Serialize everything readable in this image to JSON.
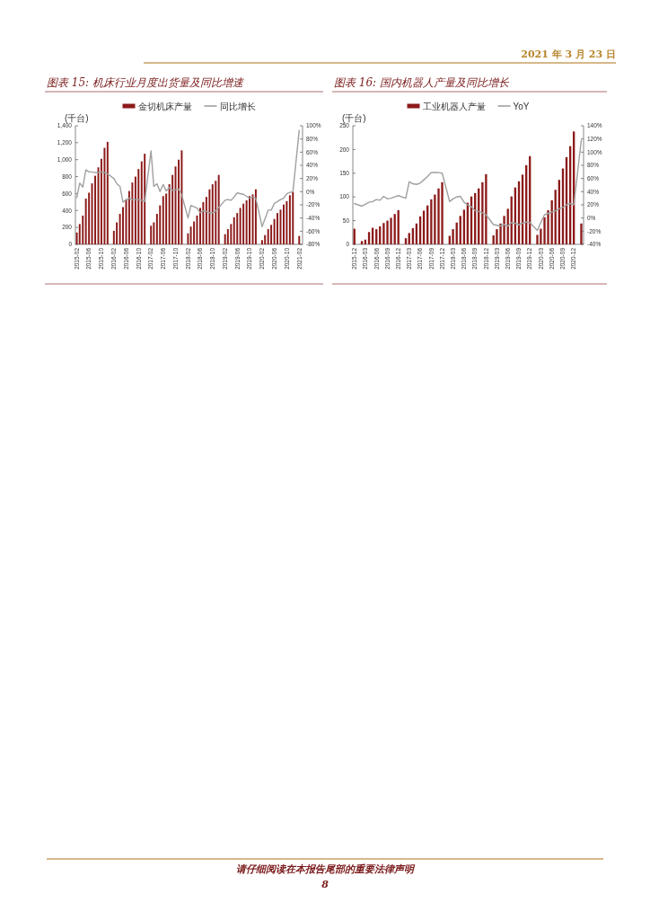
{
  "chart_data": [
    {
      "type": "bar",
      "title": "图表 15: 机床行业月度出货量及同比增速",
      "ylabel": "(千台)",
      "legend": "top",
      "x": [
        "2015-02",
        "2015-03",
        "2015-04",
        "2015-05",
        "2015-06",
        "2015-07",
        "2015-08",
        "2015-09",
        "2015-10",
        "2015-11",
        "2015-12",
        "2016-02",
        "2016-03",
        "2016-04",
        "2016-05",
        "2016-06",
        "2016-07",
        "2016-08",
        "2016-09",
        "2016-10",
        "2016-11",
        "2016-12",
        "2017-02",
        "2017-03",
        "2017-04",
        "2017-05",
        "2017-06",
        "2017-07",
        "2017-08",
        "2017-09",
        "2017-10",
        "2017-11",
        "2017-12",
        "2018-02",
        "2018-03",
        "2018-04",
        "2018-05",
        "2018-06",
        "2018-07",
        "2018-08",
        "2018-09",
        "2018-10",
        "2018-11",
        "2018-12",
        "2019-02",
        "2019-03",
        "2019-04",
        "2019-05",
        "2019-06",
        "2019-07",
        "2019-08",
        "2019-09",
        "2019-10",
        "2019-11",
        "2019-12",
        "2020-02",
        "2020-03",
        "2020-04",
        "2020-05",
        "2020-06",
        "2020-07",
        "2020-08",
        "2020-09",
        "2020-10",
        "2020-11",
        "2020-12",
        "2021-02"
      ],
      "xlim": [
        "2015-01-18",
        "2021-03-06"
      ],
      "xticks": [
        "2015-02",
        "2015-06",
        "2015-10",
        "2016-02",
        "2016-06",
        "2016-10",
        "2017-02",
        "2017-06",
        "2017-10",
        "2018-02",
        "2018-06",
        "2018-10",
        "2019-02",
        "2019-06",
        "2019-10",
        "2020-02",
        "2020-06",
        "2020-10",
        "2021-02"
      ],
      "ylim": [
        0,
        1400
      ],
      "yticks": [
        0,
        200,
        400,
        600,
        800,
        {
          "value": 1000,
          "label": "1,000"
        },
        {
          "value": 1200,
          "label": "1,200"
        },
        {
          "value": 1400,
          "label": "1,400"
        }
      ],
      "y2lim": [
        -80,
        100
      ],
      "y2ticks": [
        {
          "value": -80,
          "label": "-80%"
        },
        {
          "value": -60,
          "label": "-60%"
        },
        {
          "value": -40,
          "label": "-40%"
        },
        {
          "value": -20,
          "label": "-20%"
        },
        {
          "value": 0,
          "label": "0%"
        },
        {
          "value": 20,
          "label": "20%"
        },
        {
          "value": 40,
          "label": "40%"
        },
        {
          "value": 60,
          "label": "60%"
        },
        {
          "value": 80,
          "label": "80%"
        },
        {
          "value": 100,
          "label": "100%"
        }
      ],
      "series": [
        {
          "name": "金切机床产量",
          "color": "#8c1a1a",
          "values": [
            140,
            240,
            340,
            540,
            610,
            720,
            810,
            910,
            1010,
            1140,
            1210,
            160,
            260,
            360,
            440,
            530,
            630,
            730,
            800,
            890,
            980,
            1070,
            220,
            260,
            360,
            460,
            570,
            600,
            710,
            820,
            920,
            1000,
            1110,
            130,
            210,
            270,
            340,
            430,
            500,
            560,
            650,
            710,
            750,
            820,
            120,
            180,
            240,
            320,
            370,
            430,
            480,
            520,
            570,
            590,
            650,
            50,
            110,
            180,
            230,
            300,
            370,
            410,
            470,
            510,
            580,
            620,
            100
          ]
        },
        {
          "name": "同比增长",
          "type": "line",
          "axis": "y2",
          "color": "#a0a0a0",
          "values": [
            -9,
            13,
            7,
            33,
            30,
            30,
            29,
            29,
            30,
            29,
            27,
            20,
            12,
            8,
            -16,
            -12,
            -10,
            -12,
            -12,
            -12,
            -13,
            -15,
            62,
            8,
            12,
            0,
            11,
            1,
            6,
            2,
            3,
            4,
            -5,
            -40,
            -21,
            -23,
            -25,
            -32,
            -29,
            -30,
            -32,
            -32,
            -29,
            -24,
            -13,
            -12,
            -13,
            -8,
            -2,
            -3,
            -4,
            -7,
            -10,
            -8,
            -10,
            -53,
            -41,
            -28,
            -28,
            -18,
            -15,
            -12,
            -10,
            -3,
            -1,
            0,
            93
          ]
        }
      ],
      "annotations": [
        "2021 年 3 月 23 日",
        "请仔细阅读在本报告尾部的重要法律声明",
        "8"
      ]
    },
    {
      "type": "bar",
      "title": "图表 16: 国内机器人产量及同比增长",
      "ylabel": "(千台)",
      "legend": "top",
      "x": [
        "2015-12",
        "2016-02",
        "2016-03",
        "2016-04",
        "2016-05",
        "2016-06",
        "2016-07",
        "2016-08",
        "2016-09",
        "2016-10",
        "2016-11",
        "2016-12",
        "2017-02",
        "2017-03",
        "2017-04",
        "2017-05",
        "2017-06",
        "2017-07",
        "2017-08",
        "2017-09",
        "2017-10",
        "2017-11",
        "2017-12",
        "2018-02",
        "2018-03",
        "2018-04",
        "2018-05",
        "2018-06",
        "2018-07",
        "2018-08",
        "2018-09",
        "2018-10",
        "2018-11",
        "2018-12",
        "2019-02",
        "2019-03",
        "2019-04",
        "2019-05",
        "2019-06",
        "2019-07",
        "2019-08",
        "2019-09",
        "2019-10",
        "2019-11",
        "2019-12",
        "2020-02",
        "2020-03",
        "2020-04",
        "2020-05",
        "2020-06",
        "2020-07",
        "2020-08",
        "2020-09",
        "2020-10",
        "2020-11",
        "2020-12",
        "2021-02"
      ],
      "xlim": [
        "2015-11-18",
        "2021-02-20"
      ],
      "xticks": [
        "2015-12",
        "2016-03",
        "2016-06",
        "2016-09",
        "2016-12",
        "2017-03",
        "2017-06",
        "2017-09",
        "2017-12",
        "2018-03",
        "2018-06",
        "2018-09",
        "2018-12",
        "2019-03",
        "2019-06",
        "2019-09",
        "2019-12",
        "2020-03",
        "2020-06",
        "2020-09",
        "2020-12"
      ],
      "ylim": [
        0,
        250
      ],
      "yticks": [
        0,
        50,
        100,
        150,
        200,
        250
      ],
      "y2lim": [
        -40,
        140
      ],
      "y2ticks": [
        {
          "value": -40,
          "label": "-40%"
        },
        {
          "value": -20,
          "label": "-20%"
        },
        {
          "value": 0,
          "label": "0%"
        },
        {
          "value": 20,
          "label": "20%"
        },
        {
          "value": 40,
          "label": "40%"
        },
        {
          "value": 60,
          "label": "60%"
        },
        {
          "value": 80,
          "label": "80%"
        },
        {
          "value": 100,
          "label": "100%"
        },
        {
          "value": 120,
          "label": "120%"
        },
        {
          "value": 140,
          "label": "140%"
        }
      ],
      "series": [
        {
          "name": "工业机器人产量",
          "color": "#8c1a1a",
          "values": [
            33,
            7,
            10,
            26,
            35,
            32,
            38,
            45,
            50,
            56,
            64,
            72,
            13,
            24,
            34,
            44,
            59,
            71,
            82,
            95,
            105,
            118,
            131,
            18,
            32,
            46,
            60,
            73,
            88,
            101,
            108,
            118,
            131,
            148,
            19,
            32,
            44,
            60,
            75,
            101,
            120,
            133,
            147,
            167,
            186,
            20,
            33,
            57,
            72,
            93,
            115,
            136,
            160,
            184,
            207,
            238,
            44
          ]
        },
        {
          "name": "YoY",
          "type": "line",
          "axis": "y2",
          "color": "#a0a0a0",
          "values": [
            22,
            18,
            21,
            24,
            25,
            28,
            27,
            33,
            29,
            30,
            32,
            34,
            30,
            55,
            52,
            51,
            53,
            58,
            63,
            69,
            69,
            69,
            68,
            25,
            29,
            32,
            33,
            24,
            20,
            17,
            11,
            10,
            8,
            5,
            -10,
            -11,
            -12,
            -10,
            -12,
            -7,
            -8,
            -10,
            -8,
            -6,
            -7,
            -19,
            -7,
            5,
            7,
            9,
            11,
            14,
            16,
            20,
            22,
            20,
            118
          ]
        }
      ]
    }
  ]
}
